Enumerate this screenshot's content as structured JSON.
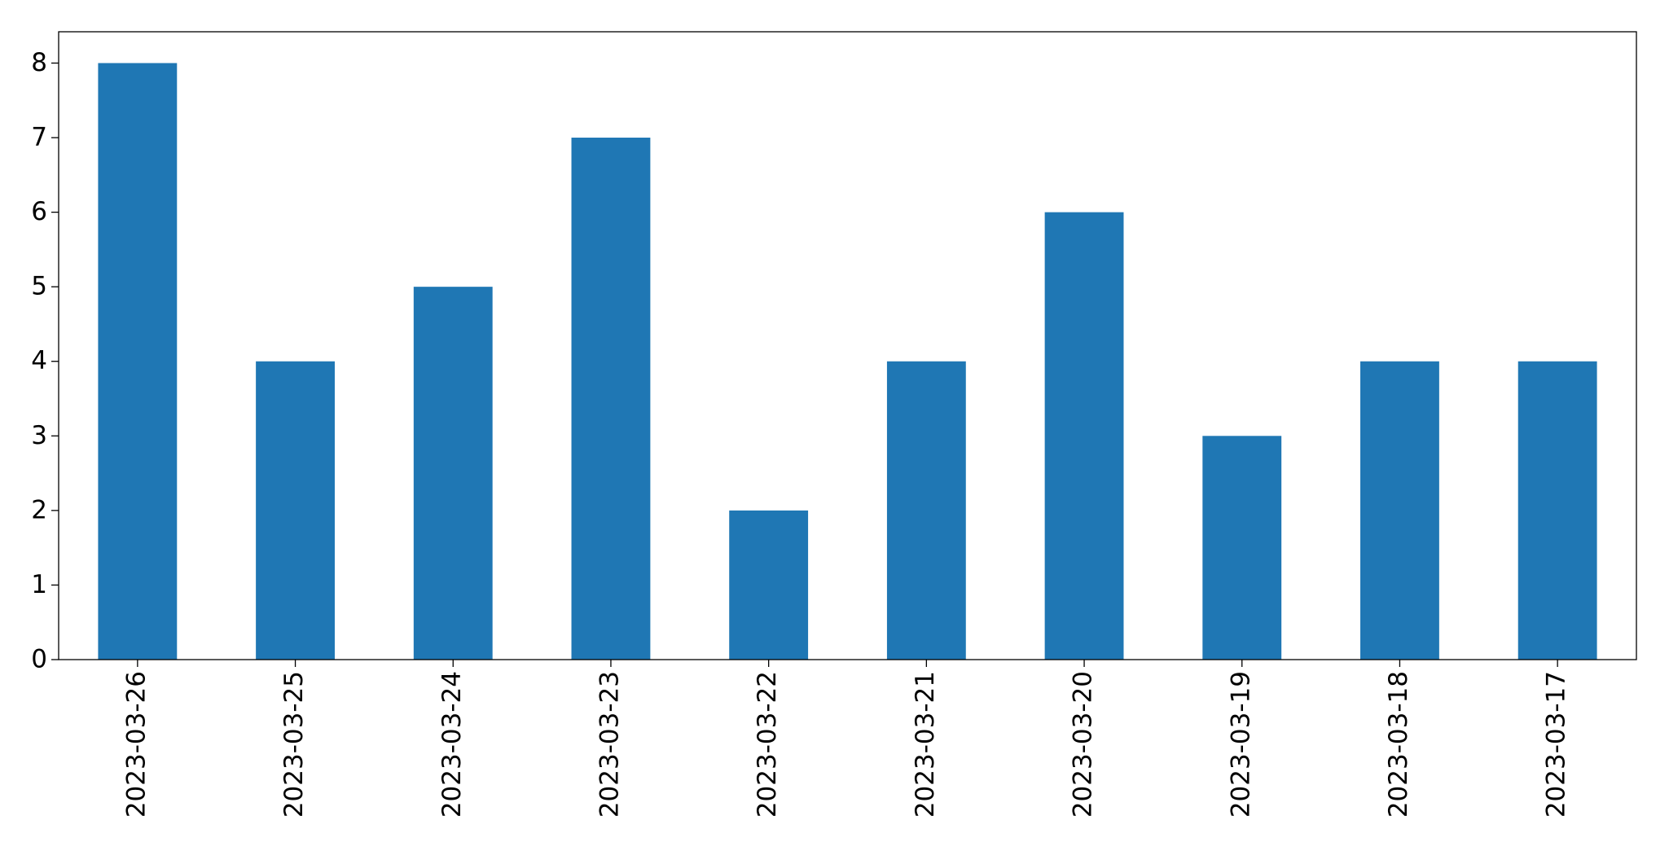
{
  "chart_data": {
    "type": "bar",
    "categories": [
      "2023-03-26",
      "2023-03-25",
      "2023-03-24",
      "2023-03-23",
      "2023-03-22",
      "2023-03-21",
      "2023-03-20",
      "2023-03-19",
      "2023-03-18",
      "2023-03-17"
    ],
    "values": [
      8,
      4,
      5,
      7,
      2,
      4,
      6,
      3,
      4,
      4
    ],
    "color": "#1f77b4",
    "ylim": [
      0,
      8.42
    ],
    "yticks": [
      0,
      1,
      2,
      3,
      4,
      5,
      6,
      7,
      8
    ],
    "grid": false
  }
}
